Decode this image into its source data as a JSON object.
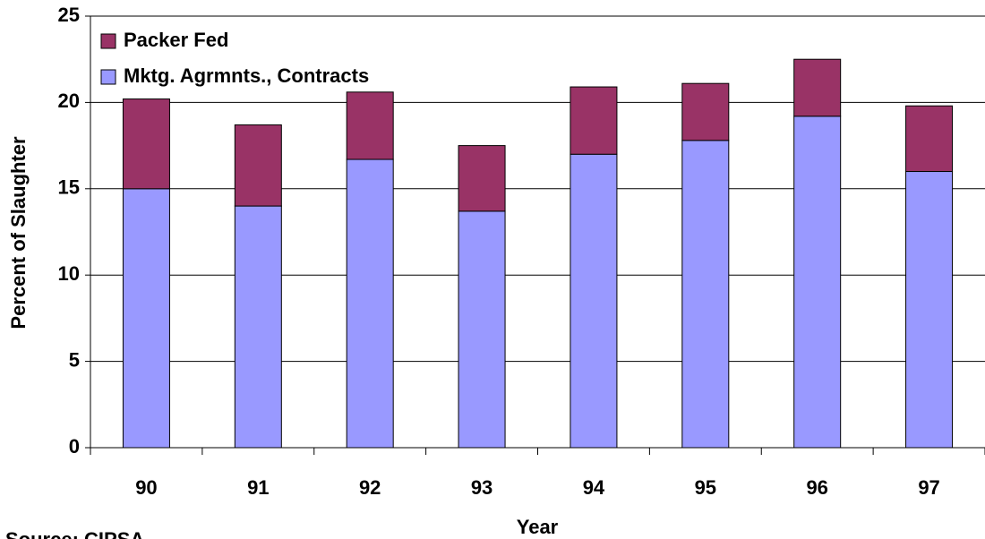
{
  "chart_data": {
    "type": "stacked-bar",
    "categories": [
      "90",
      "91",
      "92",
      "93",
      "94",
      "95",
      "96",
      "97"
    ],
    "series": [
      {
        "name": "Mktg. Agrmnts., Contracts",
        "color": "#9999ff",
        "values": [
          15.0,
          14.0,
          16.7,
          13.7,
          17.0,
          17.8,
          19.2,
          16.0
        ]
      },
      {
        "name": "Packer Fed",
        "color": "#993366",
        "values": [
          5.2,
          4.7,
          3.9,
          3.8,
          3.9,
          3.3,
          3.3,
          3.8
        ]
      }
    ],
    "x_label": "Year",
    "y_label": "Percent of Slaughter",
    "source": "Source: CIPSA",
    "ylim": [
      0,
      25
    ],
    "yticks": [
      0,
      5,
      10,
      15,
      20,
      25
    ],
    "grid": true
  }
}
